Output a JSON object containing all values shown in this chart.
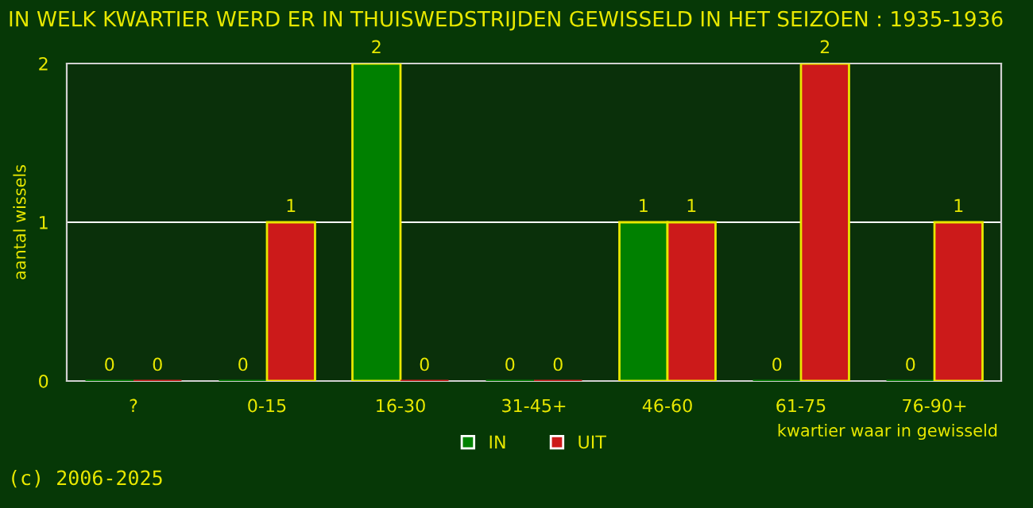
{
  "chart_data": {
    "type": "bar",
    "title": "IN WELK KWARTIER WERD ER IN THUISWEDSTRIJDEN GEWISSELD IN HET SEIZOEN : 1935-1936",
    "categories": [
      "?",
      "0-15",
      "16-30",
      "31-45+",
      "46-60",
      "61-75",
      "76-90+"
    ],
    "series": [
      {
        "name": "IN",
        "color": "#008000",
        "values": [
          0,
          0,
          2,
          0,
          1,
          0,
          0
        ]
      },
      {
        "name": "UIT",
        "color": "#cc1a1a",
        "values": [
          0,
          1,
          0,
          0,
          1,
          2,
          1
        ]
      }
    ],
    "ylim": [
      0,
      2
    ],
    "yticks": [
      0,
      1,
      2
    ],
    "grid": "y",
    "data_labels": true,
    "legend": "bottom",
    "xlabel": "kwartier waar in gewisseld",
    "ylabel": "aantal wissels",
    "annotations": [
      "(c) 2006-2025"
    ]
  }
}
